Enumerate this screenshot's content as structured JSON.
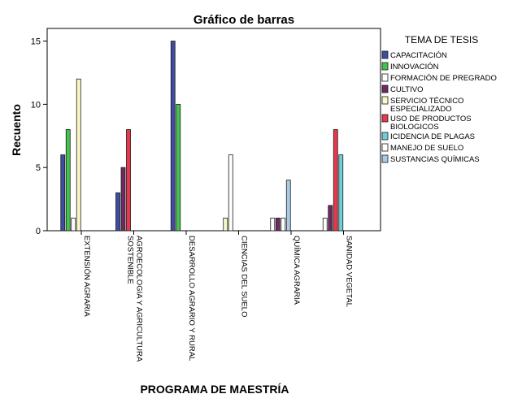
{
  "chart_data": {
    "type": "bar",
    "title": "Gráfico de barras",
    "xlabel": "PROGRAMA DE MAESTRÍA",
    "ylabel": "Recuento",
    "ylim": [
      0,
      16
    ],
    "yticks": [
      0,
      5,
      10,
      15
    ],
    "grid": false,
    "legend_title": "TEMA DE TESIS",
    "legend_position": "right",
    "categories": [
      "EXTENSIÓN AGRARIA",
      "AGROECOLOGIA Y AGRICULTURA SOSTENIBLE",
      "DESARROLLO AGRARIO Y RURAL",
      "CIENCIAS DEL SUELO",
      "QUÍMICA AGRARIA",
      "SANIDAD VEGETAL"
    ],
    "series": [
      {
        "name": "CAPACITACIÓN",
        "color": "#3b4ea0",
        "values": [
          6,
          3,
          15,
          null,
          null,
          null
        ]
      },
      {
        "name": "INNOVACIÓN",
        "color": "#46c34e",
        "values": [
          8,
          null,
          10,
          null,
          null,
          null
        ]
      },
      {
        "name": "FORMACIÓN DE PREGRADO",
        "color": "#ffffff",
        "values": [
          1,
          null,
          null,
          null,
          1,
          1
        ]
      },
      {
        "name": "CULTIVO",
        "color": "#6e2a64",
        "values": [
          null,
          5,
          null,
          null,
          1,
          2
        ]
      },
      {
        "name": "SERVICIO TÉCNICO ESPECIALIZADO",
        "color": "#fbf8c6",
        "values": [
          12,
          null,
          null,
          1,
          null,
          null
        ]
      },
      {
        "name": "USO DE PRODUCTOS BIOLOGICOS",
        "color": "#e9384a",
        "values": [
          null,
          8,
          null,
          null,
          null,
          8
        ]
      },
      {
        "name": "ICIDENCIA DE PLAGAS",
        "color": "#6ecfd6",
        "values": [
          null,
          null,
          null,
          null,
          null,
          6
        ]
      },
      {
        "name": "MANEJO DE SUELO",
        "color": "#ffffff",
        "values": [
          null,
          null,
          null,
          6,
          1,
          null
        ]
      },
      {
        "name": "SUSTANCIAS QUÍMICAS",
        "color": "#a9cbe6",
        "values": [
          null,
          null,
          null,
          null,
          4,
          null
        ]
      }
    ]
  }
}
